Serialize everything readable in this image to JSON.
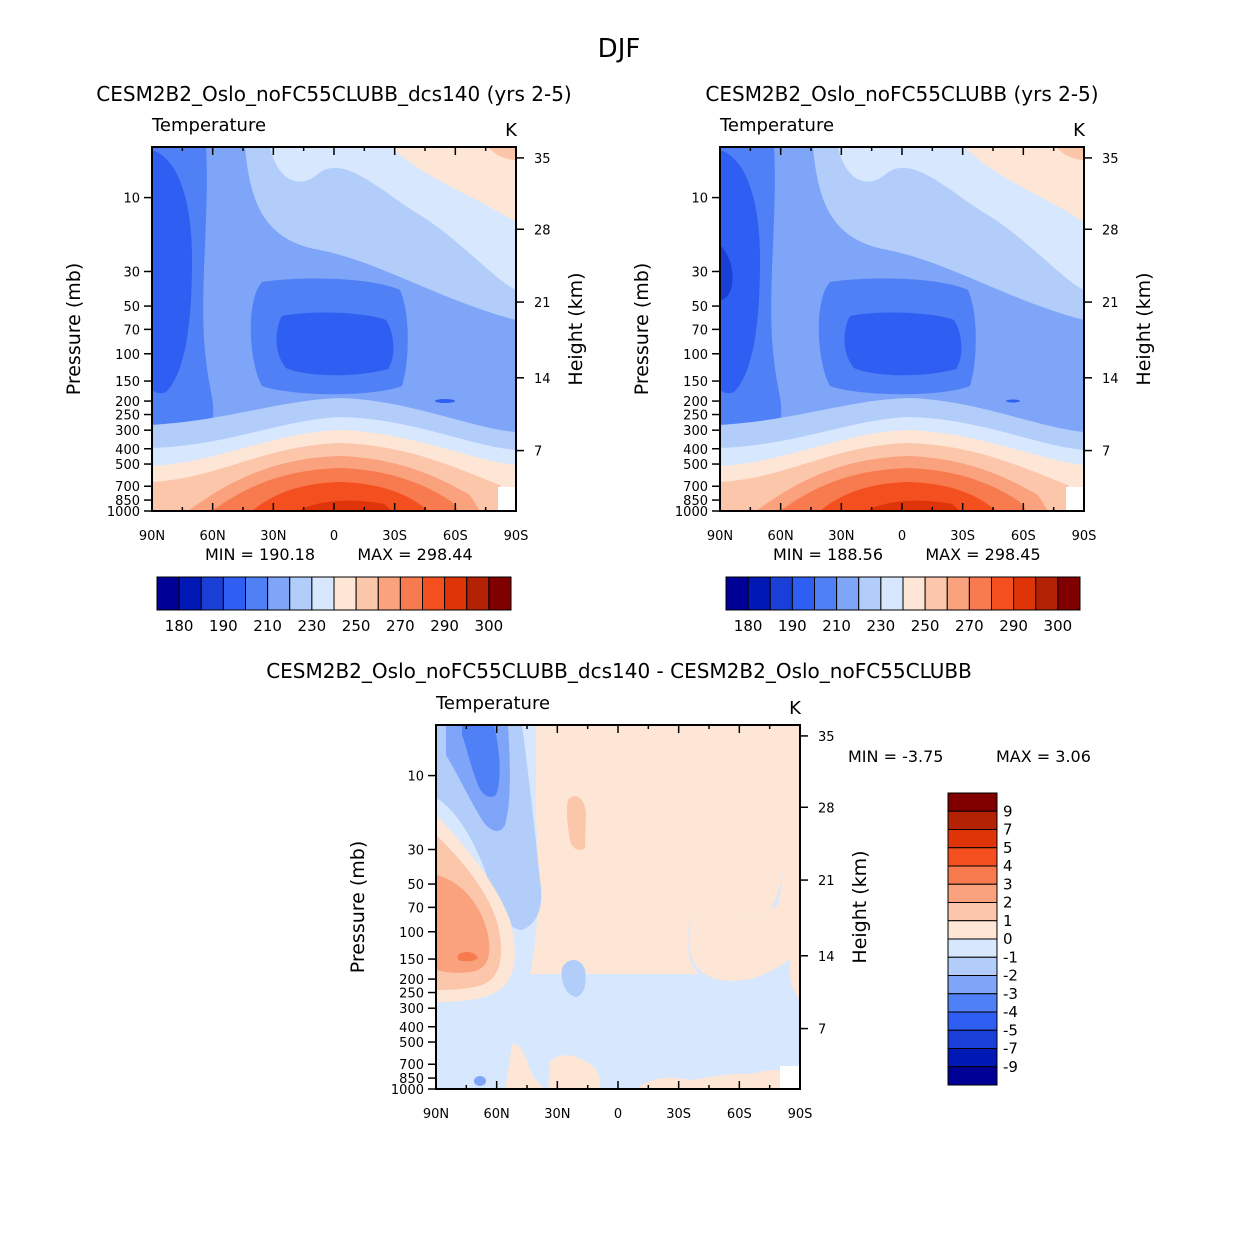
{
  "figure_title": "DJF",
  "chart_data": [
    {
      "id": "p1",
      "type": "heatmap",
      "title": "CESM2B2_Oslo_noFC55CLUBB_dcs140 (yrs 2-5)",
      "variable": "Temperature",
      "units": "K",
      "xlabel": "",
      "ylabel": "Pressure (mb)",
      "ylabel_right": "Height (km)",
      "x_ticks": [
        "90N",
        "60N",
        "30N",
        "0",
        "30S",
        "60S",
        "90S"
      ],
      "y_ticks": [
        "10",
        "30",
        "50",
        "70",
        "100",
        "150",
        "200",
        "250",
        "300",
        "400",
        "500",
        "700",
        "850",
        "1000"
      ],
      "y_ticks_right": [
        "35",
        "28",
        "21",
        "14",
        "7"
      ],
      "min_label": "MIN = 190.18",
      "max_label": "MAX = 298.44",
      "min": 190.18,
      "max": 298.44,
      "colorbar_labels": [
        "180",
        "190",
        "210",
        "230",
        "250",
        "270",
        "290",
        "300"
      ],
      "colorbar_colors": [
        "#000096",
        "#0019b4",
        "#1a3fd6",
        "#2f5ef2",
        "#4f80f5",
        "#7fa5f8",
        "#b2cdfa",
        "#d7e7fd",
        "#fde6d6",
        "#fcc6ab",
        "#f9a27d",
        "#f87a4f",
        "#f4501f",
        "#de3407",
        "#b32204",
        "#800000"
      ]
    },
    {
      "id": "p2",
      "type": "heatmap",
      "title": "CESM2B2_Oslo_noFC55CLUBB (yrs 2-5)",
      "variable": "Temperature",
      "units": "K",
      "xlabel": "",
      "ylabel": "Pressure (mb)",
      "ylabel_right": "Height (km)",
      "x_ticks": [
        "90N",
        "60N",
        "30N",
        "0",
        "30S",
        "60S",
        "90S"
      ],
      "y_ticks": [
        "10",
        "30",
        "50",
        "70",
        "100",
        "150",
        "200",
        "250",
        "300",
        "400",
        "500",
        "700",
        "850",
        "1000"
      ],
      "y_ticks_right": [
        "35",
        "28",
        "21",
        "14",
        "7"
      ],
      "min_label": "MIN = 188.56",
      "max_label": "MAX = 298.45",
      "min": 188.56,
      "max": 298.45,
      "colorbar_labels": [
        "180",
        "190",
        "210",
        "230",
        "250",
        "270",
        "290",
        "300"
      ],
      "colorbar_colors": [
        "#000096",
        "#0019b4",
        "#1a3fd6",
        "#2f5ef2",
        "#4f80f5",
        "#7fa5f8",
        "#b2cdfa",
        "#d7e7fd",
        "#fde6d6",
        "#fcc6ab",
        "#f9a27d",
        "#f87a4f",
        "#f4501f",
        "#de3407",
        "#b32204",
        "#800000"
      ]
    },
    {
      "id": "p3",
      "type": "heatmap",
      "title": "CESM2B2_Oslo_noFC55CLUBB_dcs140 - CESM2B2_Oslo_noFC55CLUBB",
      "variable": "Temperature",
      "units": "K",
      "xlabel": "",
      "ylabel": "Pressure (mb)",
      "ylabel_right": "Height (km)",
      "x_ticks": [
        "90N",
        "60N",
        "30N",
        "0",
        "30S",
        "60S",
        "90S"
      ],
      "y_ticks": [
        "10",
        "30",
        "50",
        "70",
        "100",
        "150",
        "200",
        "250",
        "300",
        "400",
        "500",
        "700",
        "850",
        "1000"
      ],
      "y_ticks_right": [
        "35",
        "28",
        "21",
        "14",
        "7"
      ],
      "min_label": "MIN = -3.75",
      "max_label": "MAX = 3.06",
      "min": -3.75,
      "max": 3.06,
      "colorbar_labels": [
        "9",
        "7",
        "5",
        "4",
        "3",
        "2",
        "1",
        "0",
        "-1",
        "-2",
        "-3",
        "-4",
        "-5",
        "-7",
        "-9"
      ],
      "colorbar_colors": [
        "#800000",
        "#b32204",
        "#de3407",
        "#f4501f",
        "#f87a4f",
        "#f9a27d",
        "#fcc6ab",
        "#fde6d6",
        "#d7e7fd",
        "#b2cdfa",
        "#7fa5f8",
        "#4f80f5",
        "#2f5ef2",
        "#1a3fd6",
        "#0019b4",
        "#000096"
      ]
    }
  ]
}
